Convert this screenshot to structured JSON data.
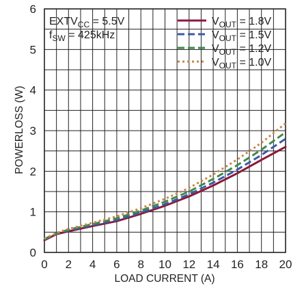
{
  "chart_data": {
    "type": "line",
    "xlabel": "LOAD CURRENT (A)",
    "ylabel": "POWERLOSS (W)",
    "xlim": [
      0,
      20
    ],
    "ylim": [
      0,
      6
    ],
    "xticks": [
      "0",
      "2",
      "4",
      "6",
      "8",
      "10",
      "12",
      "14",
      "16",
      "18",
      "20"
    ],
    "yticks": [
      "0",
      "1",
      "2",
      "3",
      "4",
      "5",
      "6"
    ],
    "grid": true,
    "legend_position": "top-right",
    "annotations": [
      {
        "main": "EXTV",
        "sub": "CC",
        "rest": " = 5.5V"
      },
      {
        "main": "f",
        "sub": "SW",
        "rest": " = 425kHz"
      }
    ],
    "series": [
      {
        "label_main": "V",
        "label_sub": "OUT",
        "label_rest": " = 1.8V",
        "color": "#8b1a3a",
        "style": "solid",
        "x": [
          0,
          1,
          2,
          4,
          6,
          8,
          10,
          12,
          14,
          16,
          18,
          20
        ],
        "y": [
          0.3,
          0.45,
          0.52,
          0.65,
          0.77,
          0.95,
          1.15,
          1.38,
          1.65,
          1.95,
          2.28,
          2.6
        ]
      },
      {
        "label_main": "V",
        "label_sub": "OUT",
        "label_rest": " = 1.5V",
        "color": "#3a5aa8",
        "style": "dash",
        "x": [
          0,
          1,
          2,
          4,
          6,
          8,
          10,
          12,
          14,
          16,
          18,
          20
        ],
        "y": [
          0.32,
          0.46,
          0.54,
          0.67,
          0.8,
          0.98,
          1.19,
          1.43,
          1.72,
          2.04,
          2.4,
          2.8
        ]
      },
      {
        "label_main": "V",
        "label_sub": "OUT",
        "label_rest": " = 1.2V",
        "color": "#3f8a4a",
        "style": "dash",
        "x": [
          0,
          1,
          2,
          4,
          6,
          8,
          10,
          12,
          14,
          16,
          18,
          20
        ],
        "y": [
          0.33,
          0.47,
          0.56,
          0.7,
          0.84,
          1.03,
          1.25,
          1.5,
          1.81,
          2.15,
          2.53,
          2.96
        ]
      },
      {
        "label_main": "V",
        "label_sub": "OUT",
        "label_rest": " = 1.0V",
        "color": "#c8874a",
        "style": "dot",
        "x": [
          0,
          1,
          2,
          4,
          6,
          8,
          10,
          12,
          14,
          16,
          18,
          20
        ],
        "y": [
          0.34,
          0.48,
          0.58,
          0.73,
          0.89,
          1.09,
          1.32,
          1.59,
          1.92,
          2.29,
          2.7,
          3.18
        ]
      }
    ]
  }
}
